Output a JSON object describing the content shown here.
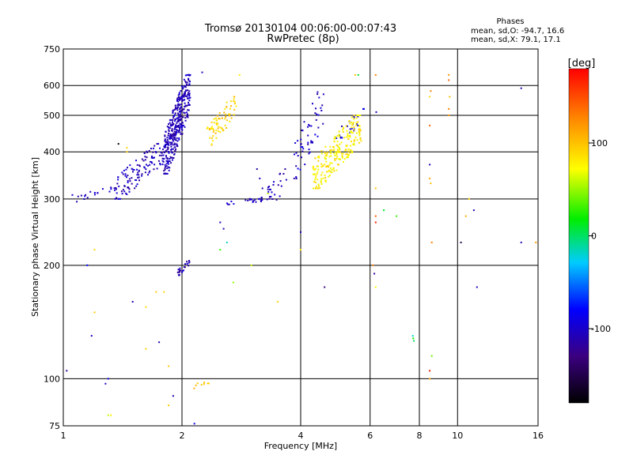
{
  "chart_data": {
    "type": "scatter",
    "title": "Tromsø 20130104 00:06:00-00:07:43",
    "subtitle": "RwPretec (8p)",
    "xlabel": "Frequency [MHz]",
    "ylabel": "Stationary phase Virtual Height [km]",
    "x_scale": "log",
    "y_scale": "log",
    "xlim": [
      1,
      16
    ],
    "ylim": [
      75,
      750
    ],
    "x_ticks": [
      1,
      2,
      4,
      6,
      8,
      10,
      16
    ],
    "y_ticks": [
      75,
      100,
      200,
      300,
      400,
      500,
      600,
      750
    ],
    "grid": true,
    "stats": {
      "heading": "Phases",
      "line_o": "mean, sd,O: -94.7, 16.6",
      "line_x": "mean, sd,X:  79.1, 17.1"
    },
    "colorbar": {
      "label": "[deg]",
      "range": [
        -180,
        180
      ],
      "ticks": [
        100,
        0,
        -100
      ]
    },
    "series": [
      {
        "clusters": [
          {
            "f": [
              1.8,
              2.1
            ],
            "h": [
              350,
              640
            ],
            "n": 380,
            "phase": -108
          },
          {
            "f": [
              1.35,
              1.8
            ],
            "h": [
              300,
              420
            ],
            "n": 120,
            "phase": -106
          },
          {
            "f": [
              1.05,
              1.35
            ],
            "h": [
              295,
              330
            ],
            "n": 18,
            "phase": -100
          },
          {
            "f": [
              1.95,
              2.12
            ],
            "h": [
              188,
              208
            ],
            "n": 24,
            "phase": -112
          },
          {
            "f": [
              2.6,
              3.6
            ],
            "h": [
              290,
              305
            ],
            "n": 30,
            "phase": -108
          },
          {
            "f": [
              3.3,
              3.7
            ],
            "h": [
              300,
              360
            ],
            "n": 20,
            "phase": -110
          },
          {
            "f": [
              3.85,
              4.6
            ],
            "h": [
              340,
              590
            ],
            "n": 55,
            "phase": -105
          },
          {
            "f": [
              4.9,
              5.8
            ],
            "h": [
              420,
              520
            ],
            "n": 25,
            "phase": -100
          },
          {
            "f": [
              2.3,
              2.75
            ],
            "h": [
              410,
              560
            ],
            "n": 70,
            "phase": 92
          },
          {
            "f": [
              4.3,
              5.7
            ],
            "h": [
              320,
              500
            ],
            "n": 230,
            "phase": 80
          },
          {
            "f": [
              2.1,
              2.4
            ],
            "h": [
              93,
              100
            ],
            "n": 8,
            "phase": 95
          }
        ],
        "points": [
          [
            1.02,
            105,
            -120
          ],
          [
            1.28,
            97,
            -105
          ],
          [
            1.3,
            100,
            -90
          ],
          [
            1.3,
            80,
            60
          ],
          [
            1.18,
            130,
            -100
          ],
          [
            1.2,
            150,
            95
          ],
          [
            1.2,
            220,
            90
          ],
          [
            1.15,
            200,
            -80
          ],
          [
            1.5,
            160,
            -110
          ],
          [
            1.62,
            155,
            90
          ],
          [
            1.8,
            170,
            90
          ],
          [
            1.72,
            170,
            95
          ],
          [
            1.62,
            120,
            95
          ],
          [
            1.75,
            125,
            -110
          ],
          [
            1.85,
            108,
            95
          ],
          [
            1.9,
            90,
            -110
          ],
          [
            1.85,
            85,
            95
          ],
          [
            2.15,
            76,
            -90
          ],
          [
            1.45,
            410,
            90
          ],
          [
            1.45,
            400,
            95
          ],
          [
            1.38,
            420,
            -180
          ],
          [
            2.5,
            220,
            30
          ],
          [
            2.6,
            230,
            -20
          ],
          [
            2.55,
            250,
            -110
          ],
          [
            2.5,
            260,
            -110
          ],
          [
            2.7,
            180,
            50
          ],
          [
            3.0,
            200,
            60
          ],
          [
            3.5,
            160,
            90
          ],
          [
            2.8,
            640,
            80
          ],
          [
            2.25,
            650,
            -110
          ],
          [
            3.1,
            360,
            -110
          ],
          [
            3.15,
            340,
            -110
          ],
          [
            3.2,
            320,
            -110
          ],
          [
            3.3,
            310,
            60
          ],
          [
            4.0,
            245,
            -110
          ],
          [
            4.0,
            220,
            80
          ],
          [
            4.6,
            175,
            -130
          ],
          [
            5.5,
            640,
            100
          ],
          [
            5.6,
            640,
            10
          ],
          [
            6.2,
            640,
            130
          ],
          [
            6.22,
            510,
            -100
          ],
          [
            6.15,
            190,
            -120
          ],
          [
            6.1,
            200,
            130
          ],
          [
            6.2,
            175,
            70
          ],
          [
            6.2,
            320,
            100
          ],
          [
            6.2,
            270,
            140
          ],
          [
            6.2,
            260,
            170
          ],
          [
            6.5,
            280,
            10
          ],
          [
            7.0,
            270,
            30
          ],
          [
            7.7,
            130,
            -20
          ],
          [
            7.72,
            128,
            20
          ],
          [
            7.75,
            126,
            0
          ],
          [
            8.5,
            560,
            90
          ],
          [
            8.55,
            580,
            130
          ],
          [
            8.5,
            470,
            140
          ],
          [
            8.5,
            370,
            -110
          ],
          [
            8.55,
            330,
            100
          ],
          [
            8.5,
            340,
            110
          ],
          [
            8.6,
            230,
            130
          ],
          [
            8.5,
            100,
            110
          ],
          [
            8.5,
            105,
            170
          ],
          [
            8.6,
            115,
            40
          ],
          [
            9.5,
            640,
            120
          ],
          [
            9.5,
            620,
            140
          ],
          [
            9.55,
            560,
            100
          ],
          [
            9.5,
            500,
            120
          ],
          [
            9.5,
            520,
            130
          ],
          [
            10.2,
            230,
            -150
          ],
          [
            10.5,
            270,
            110
          ],
          [
            10.7,
            300,
            90
          ],
          [
            11.0,
            280,
            -110
          ],
          [
            11.2,
            175,
            -110
          ],
          [
            14.5,
            590,
            -110
          ],
          [
            14.5,
            230,
            -110
          ],
          [
            15.8,
            230,
            120
          ],
          [
            1.32,
            80,
            80
          ]
        ]
      }
    ]
  }
}
